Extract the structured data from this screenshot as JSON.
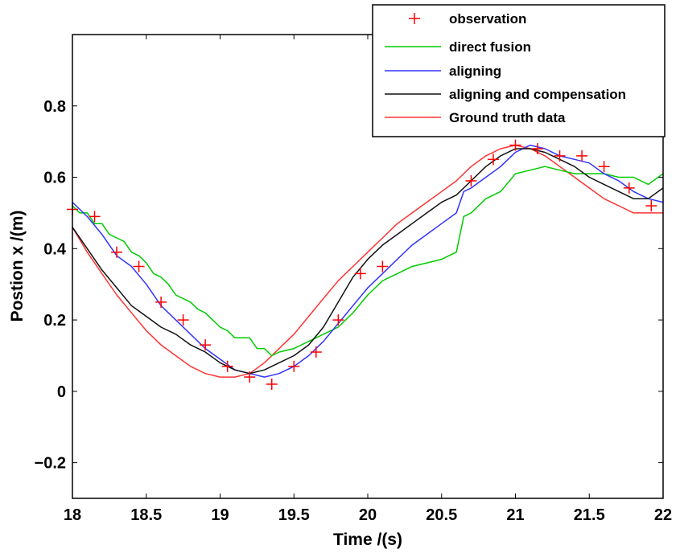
{
  "chart_data": {
    "type": "line",
    "title": "",
    "xlabel": "Time /(s)",
    "ylabel": "Postion x /(m)",
    "xlim": [
      18,
      22
    ],
    "ylim": [
      -0.3,
      1.0
    ],
    "grid": false,
    "legend_placement": "top-right",
    "x_ticks": [
      {
        "value": 18,
        "label": "18"
      },
      {
        "value": 18.5,
        "label": "18.5"
      },
      {
        "value": 19,
        "label": "19"
      },
      {
        "value": 19.5,
        "label": "19.5"
      },
      {
        "value": 20,
        "label": "20"
      },
      {
        "value": 20.5,
        "label": "20.5"
      },
      {
        "value": 21,
        "label": "21"
      },
      {
        "value": 21.5,
        "label": "21.5"
      },
      {
        "value": 22,
        "label": "22"
      }
    ],
    "y_ticks": [
      {
        "value": -0.2,
        "label": "−0.2"
      },
      {
        "value": 0,
        "label": "0"
      },
      {
        "value": 0.2,
        "label": "0.2"
      },
      {
        "value": 0.4,
        "label": "0.4"
      },
      {
        "value": 0.6,
        "label": "0.6"
      },
      {
        "value": 0.8,
        "label": "0.8"
      }
    ],
    "series": [
      {
        "name": "observation",
        "kind": "marker",
        "color": "#ff0000",
        "x": [
          18.0,
          18.15,
          18.3,
          18.45,
          18.6,
          18.75,
          18.9,
          19.05,
          19.2,
          19.35,
          19.5,
          19.65,
          19.8,
          19.95,
          20.1,
          20.7,
          20.85,
          21.0,
          21.15,
          21.3,
          21.45,
          21.6,
          21.77,
          21.92
        ],
        "y": [
          0.51,
          0.49,
          0.39,
          0.35,
          0.25,
          0.2,
          0.13,
          0.07,
          0.04,
          0.02,
          0.07,
          0.11,
          0.2,
          0.33,
          0.35,
          0.59,
          0.65,
          0.69,
          0.68,
          0.66,
          0.66,
          0.63,
          0.57,
          0.52
        ]
      },
      {
        "name": "direct fusion",
        "kind": "line",
        "color": "#00cc00",
        "x": [
          18.0,
          18.05,
          18.1,
          18.15,
          18.2,
          18.25,
          18.3,
          18.35,
          18.4,
          18.45,
          18.5,
          18.55,
          18.6,
          18.65,
          18.7,
          18.75,
          18.8,
          18.85,
          18.9,
          18.95,
          19.0,
          19.05,
          19.1,
          19.15,
          19.2,
          19.25,
          19.3,
          19.35,
          19.4,
          19.5,
          19.6,
          19.7,
          19.8,
          19.9,
          20.0,
          20.1,
          20.2,
          20.3,
          20.4,
          20.5,
          20.6,
          20.65,
          20.7,
          20.8,
          20.9,
          21.0,
          21.1,
          21.2,
          21.3,
          21.4,
          21.5,
          21.6,
          21.7,
          21.8,
          21.9,
          22.0
        ],
        "y": [
          0.52,
          0.5,
          0.5,
          0.47,
          0.47,
          0.44,
          0.43,
          0.42,
          0.39,
          0.38,
          0.36,
          0.33,
          0.32,
          0.3,
          0.27,
          0.26,
          0.25,
          0.23,
          0.22,
          0.2,
          0.18,
          0.17,
          0.15,
          0.15,
          0.15,
          0.12,
          0.12,
          0.1,
          0.11,
          0.12,
          0.14,
          0.16,
          0.18,
          0.22,
          0.27,
          0.31,
          0.33,
          0.35,
          0.36,
          0.37,
          0.39,
          0.49,
          0.5,
          0.54,
          0.56,
          0.61,
          0.62,
          0.63,
          0.62,
          0.61,
          0.61,
          0.61,
          0.6,
          0.6,
          0.58,
          0.61
        ]
      },
      {
        "name": "aligning",
        "kind": "line",
        "color": "#3333ff",
        "x": [
          18.0,
          18.1,
          18.2,
          18.3,
          18.4,
          18.5,
          18.6,
          18.7,
          18.8,
          18.9,
          19.0,
          19.1,
          19.2,
          19.3,
          19.4,
          19.5,
          19.6,
          19.7,
          19.8,
          19.9,
          20.0,
          20.1,
          20.2,
          20.3,
          20.4,
          20.5,
          20.6,
          20.65,
          20.7,
          20.8,
          20.9,
          21.0,
          21.1,
          21.2,
          21.3,
          21.4,
          21.5,
          21.6,
          21.7,
          21.8,
          21.9,
          22.0
        ],
        "y": [
          0.53,
          0.49,
          0.44,
          0.38,
          0.35,
          0.3,
          0.24,
          0.2,
          0.16,
          0.12,
          0.09,
          0.06,
          0.05,
          0.04,
          0.05,
          0.07,
          0.1,
          0.14,
          0.19,
          0.24,
          0.29,
          0.33,
          0.37,
          0.41,
          0.44,
          0.47,
          0.5,
          0.56,
          0.57,
          0.6,
          0.63,
          0.67,
          0.69,
          0.68,
          0.66,
          0.65,
          0.64,
          0.61,
          0.59,
          0.56,
          0.54,
          0.53
        ]
      },
      {
        "name": "aligning and compensation",
        "kind": "line",
        "color": "#111111",
        "x": [
          18.0,
          18.1,
          18.2,
          18.3,
          18.4,
          18.5,
          18.6,
          18.7,
          18.8,
          18.9,
          19.0,
          19.1,
          19.2,
          19.3,
          19.4,
          19.5,
          19.6,
          19.7,
          19.8,
          19.9,
          20.0,
          20.1,
          20.2,
          20.3,
          20.4,
          20.5,
          20.6,
          20.7,
          20.8,
          20.9,
          21.0,
          21.1,
          21.2,
          21.3,
          21.4,
          21.5,
          21.6,
          21.7,
          21.8,
          21.9,
          22.0
        ],
        "y": [
          0.46,
          0.4,
          0.34,
          0.29,
          0.24,
          0.21,
          0.18,
          0.16,
          0.13,
          0.11,
          0.08,
          0.06,
          0.05,
          0.06,
          0.08,
          0.1,
          0.13,
          0.18,
          0.25,
          0.32,
          0.37,
          0.41,
          0.44,
          0.47,
          0.5,
          0.53,
          0.55,
          0.59,
          0.63,
          0.66,
          0.68,
          0.68,
          0.67,
          0.65,
          0.63,
          0.6,
          0.58,
          0.56,
          0.54,
          0.54,
          0.57
        ]
      },
      {
        "name": "Ground truth data",
        "kind": "line",
        "color": "#ff3333",
        "x": [
          18.0,
          18.1,
          18.2,
          18.3,
          18.4,
          18.5,
          18.6,
          18.7,
          18.8,
          18.9,
          19.0,
          19.1,
          19.2,
          19.3,
          19.4,
          19.5,
          19.6,
          19.7,
          19.8,
          19.9,
          20.0,
          20.1,
          20.2,
          20.3,
          20.4,
          20.5,
          20.6,
          20.7,
          20.8,
          20.9,
          21.0,
          21.1,
          21.2,
          21.3,
          21.4,
          21.5,
          21.6,
          21.7,
          21.8,
          21.9,
          22.0
        ],
        "y": [
          0.46,
          0.39,
          0.33,
          0.27,
          0.22,
          0.17,
          0.13,
          0.1,
          0.07,
          0.05,
          0.04,
          0.04,
          0.05,
          0.08,
          0.12,
          0.16,
          0.21,
          0.26,
          0.31,
          0.35,
          0.39,
          0.43,
          0.47,
          0.5,
          0.53,
          0.56,
          0.59,
          0.63,
          0.66,
          0.68,
          0.69,
          0.68,
          0.66,
          0.63,
          0.6,
          0.57,
          0.54,
          0.52,
          0.5,
          0.5,
          0.5
        ]
      }
    ]
  }
}
